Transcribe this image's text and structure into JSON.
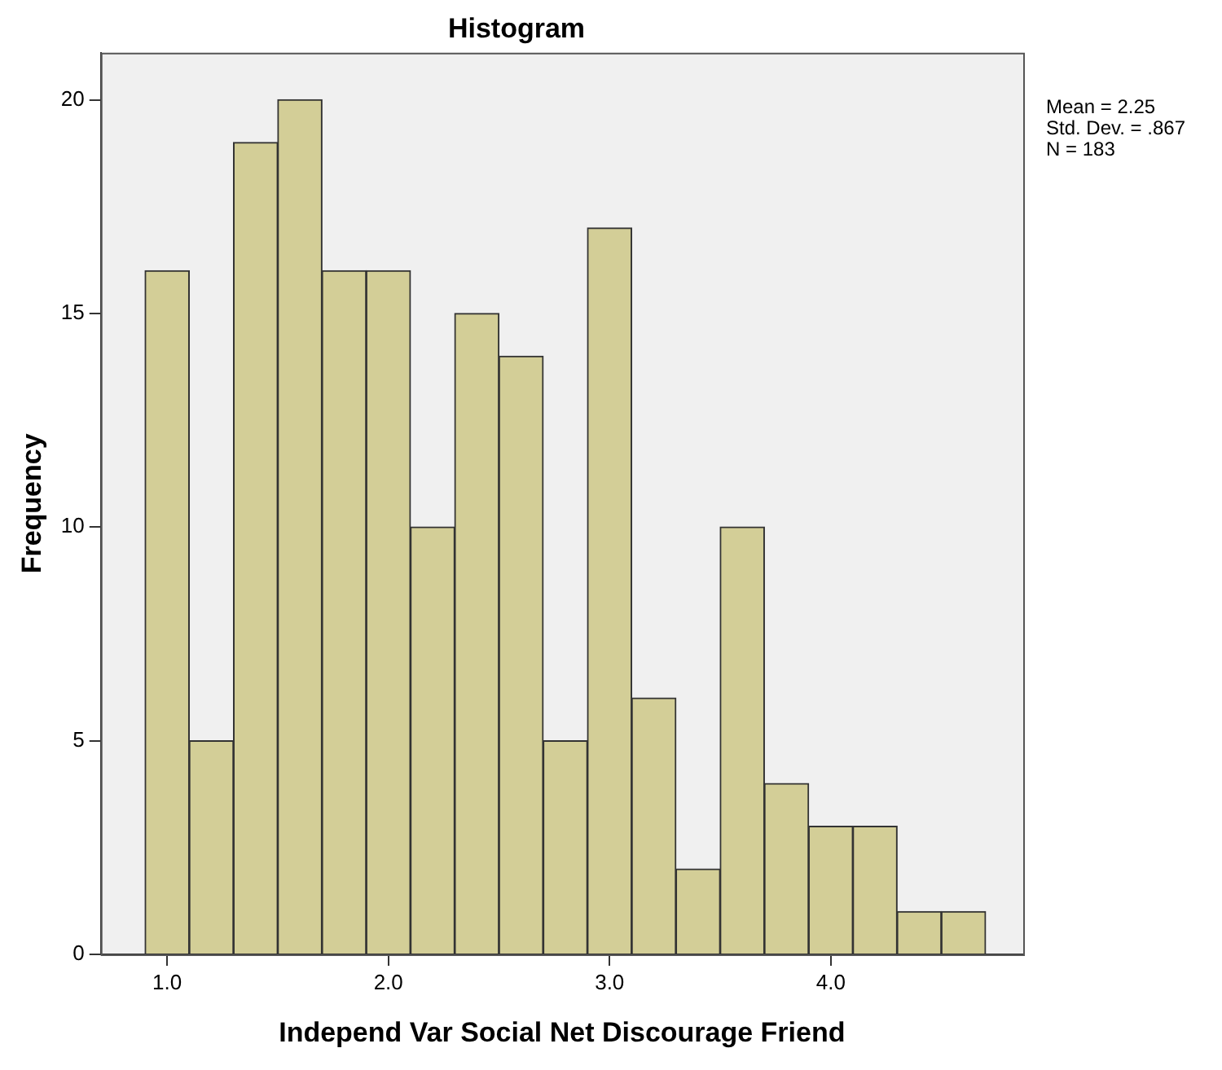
{
  "chart_data": {
    "type": "histogram",
    "title": "Histogram",
    "xlabel": "Independ Var Social Net Discourage Friend",
    "ylabel": "Frequency",
    "bins": [
      0.9,
      1.1,
      1.3,
      1.5,
      1.7,
      1.9,
      2.1,
      2.3,
      2.5,
      2.7,
      2.9,
      3.1,
      3.3,
      3.5,
      3.7,
      3.9,
      4.1,
      4.3,
      4.5,
      4.7
    ],
    "values": [
      16,
      5,
      19,
      20,
      16,
      16,
      10,
      15,
      14,
      5,
      17,
      6,
      2,
      10,
      4,
      3,
      3,
      1,
      1
    ],
    "color": "#d3ce97",
    "xlim": [
      0.7,
      4.87
    ],
    "ylim": [
      0,
      21.1
    ],
    "xticks": [
      {
        "value": 1,
        "label": "1.0"
      },
      {
        "value": 2,
        "label": "2.0"
      },
      {
        "value": 3,
        "label": "3.0"
      },
      {
        "value": 4,
        "label": "4.0"
      }
    ],
    "yticks": [
      0,
      5,
      10,
      15,
      20
    ],
    "grid": false,
    "legend": false,
    "annotations": [
      "Mean = 2.25",
      "Std. Dev. = .867",
      "N = 183"
    ]
  }
}
